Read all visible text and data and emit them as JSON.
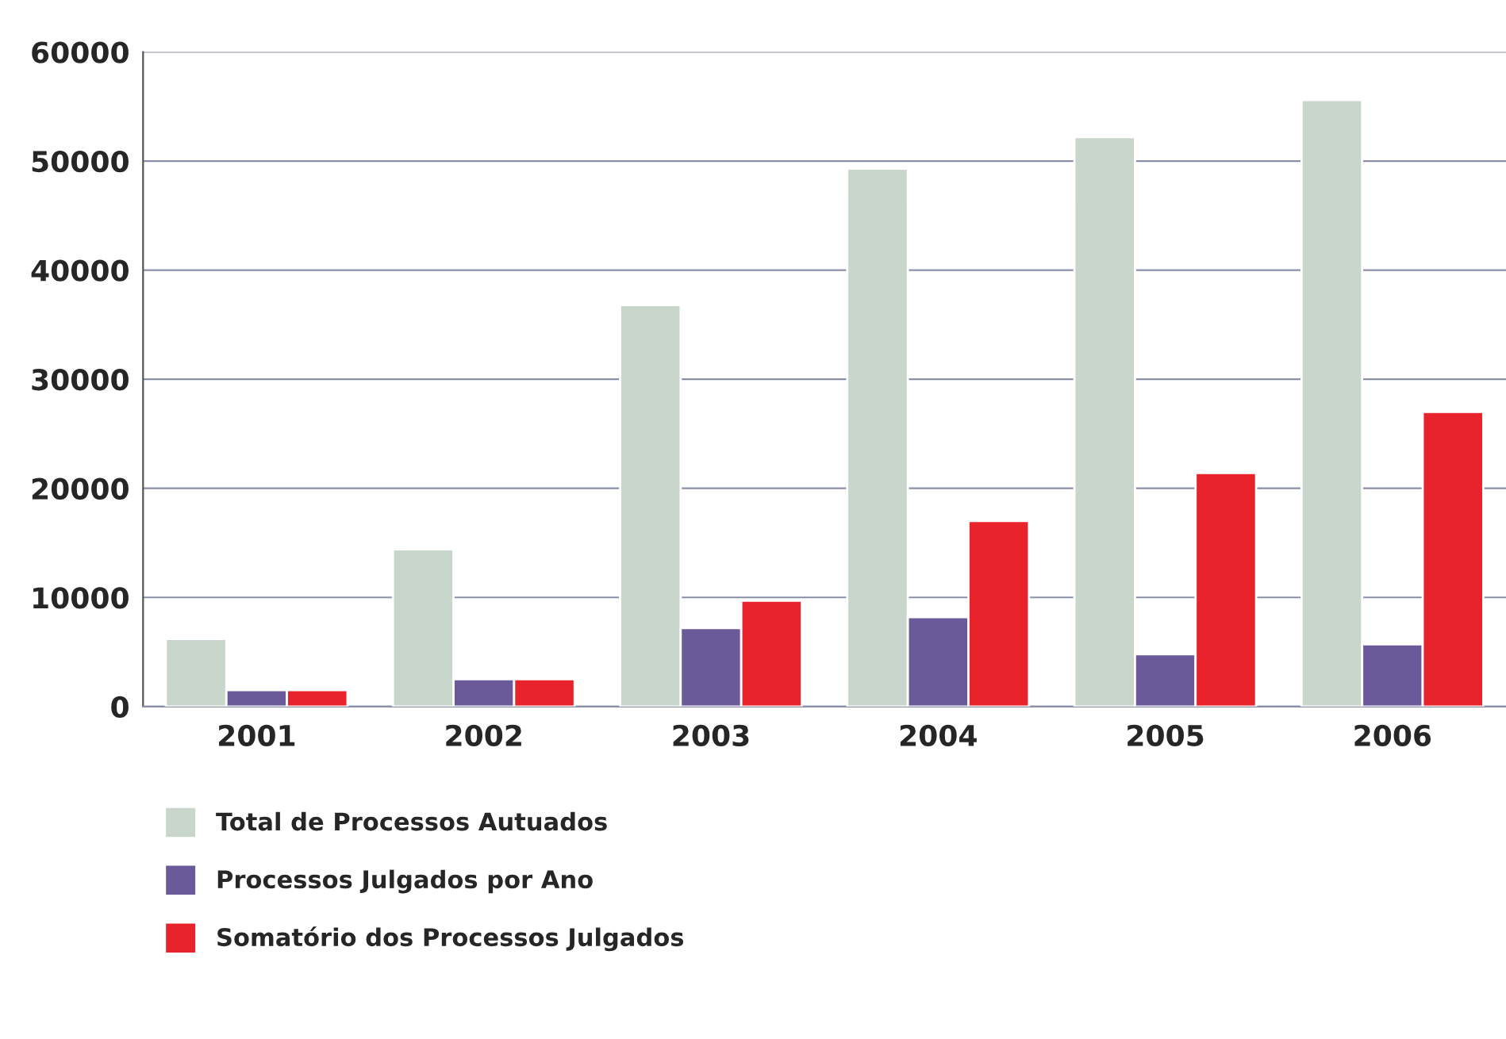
{
  "chart_data": {
    "type": "bar",
    "categories": [
      "2001",
      "2002",
      "2003",
      "2004",
      "2005",
      "2006"
    ],
    "series": [
      {
        "name": "Total de Processos Autuados",
        "color": "#c8d6cb",
        "values": [
          6200,
          14400,
          36800,
          49300,
          52200,
          55600
        ]
      },
      {
        "name": "Processos Julgados por Ano",
        "color": "#6a5a9a",
        "values": [
          1500,
          2500,
          7200,
          8200,
          4800,
          5700
        ]
      },
      {
        "name": "Somatório dos Processos Julgados",
        "color": "#e8232b",
        "values": [
          1500,
          2500,
          9700,
          17000,
          21400,
          27000
        ]
      }
    ],
    "ylim": [
      0,
      60000
    ],
    "yticks": [
      0,
      10000,
      20000,
      30000,
      40000,
      50000,
      60000
    ],
    "grid": "y",
    "legend": "bottom left"
  }
}
